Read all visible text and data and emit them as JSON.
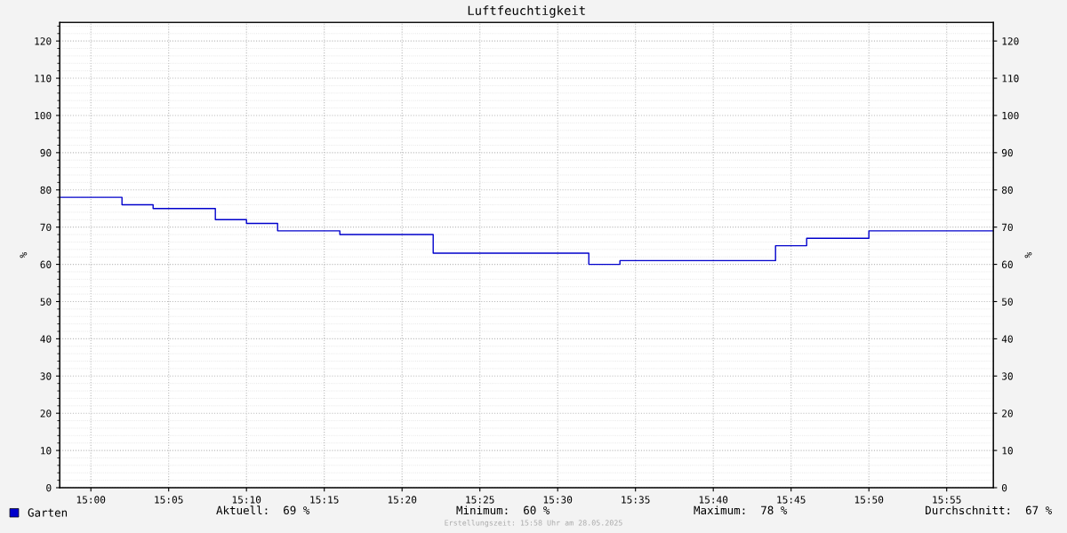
{
  "chart_data": {
    "type": "step",
    "title": "Luftfeuchtigkeit",
    "ylabel": "%",
    "y2label": "%",
    "x": [
      "2025-05-28T14:58",
      "2025-05-28T15:02",
      "2025-05-28T15:04",
      "2025-05-28T15:08",
      "2025-05-28T15:10",
      "2025-05-28T15:12",
      "2025-05-28T15:16",
      "2025-05-28T15:22",
      "2025-05-28T15:32",
      "2025-05-28T15:34",
      "2025-05-28T15:44",
      "2025-05-28T15:46",
      "2025-05-28T15:50",
      "2025-05-28T15:58"
    ],
    "series": [
      {
        "name": "Garten",
        "color": "#0000cc",
        "values": [
          78,
          76,
          75,
          72,
          71,
          69,
          68,
          63,
          60,
          61,
          65,
          67,
          69,
          69
        ]
      }
    ],
    "xlim": [
      "2025-05-28T14:58",
      "2025-05-28T15:58"
    ],
    "xticks": [
      {
        "value": "2025-05-28T15:00",
        "label": "15:00"
      },
      {
        "value": "2025-05-28T15:05",
        "label": "15:05"
      },
      {
        "value": "2025-05-28T15:10",
        "label": "15:10"
      },
      {
        "value": "2025-05-28T15:15",
        "label": "15:15"
      },
      {
        "value": "2025-05-28T15:20",
        "label": "15:20"
      },
      {
        "value": "2025-05-28T15:25",
        "label": "15:25"
      },
      {
        "value": "2025-05-28T15:30",
        "label": "15:30"
      },
      {
        "value": "2025-05-28T15:35",
        "label": "15:35"
      },
      {
        "value": "2025-05-28T15:40",
        "label": "15:40"
      },
      {
        "value": "2025-05-28T15:45",
        "label": "15:45"
      },
      {
        "value": "2025-05-28T15:50",
        "label": "15:50"
      },
      {
        "value": "2025-05-28T15:55",
        "label": "15:55"
      }
    ],
    "ylim": [
      0,
      125
    ],
    "yticks": [
      0,
      10,
      20,
      30,
      40,
      50,
      60,
      70,
      80,
      90,
      100,
      110,
      120
    ],
    "y2lim": [
      0,
      125
    ],
    "y2ticks": [
      0,
      10,
      20,
      30,
      40,
      50,
      60,
      70,
      80,
      90,
      100,
      110,
      120
    ],
    "grid": true,
    "legend": "bottom left",
    "line_style": "solid",
    "annotations": [
      "Aktuell:  69 %",
      "Minimum:  60 %",
      "Maximum:  78 %",
      "Durchschnitt:  67 %",
      "Erstellungszeit: 15:58 Uhr am 28.05.2025"
    ]
  }
}
